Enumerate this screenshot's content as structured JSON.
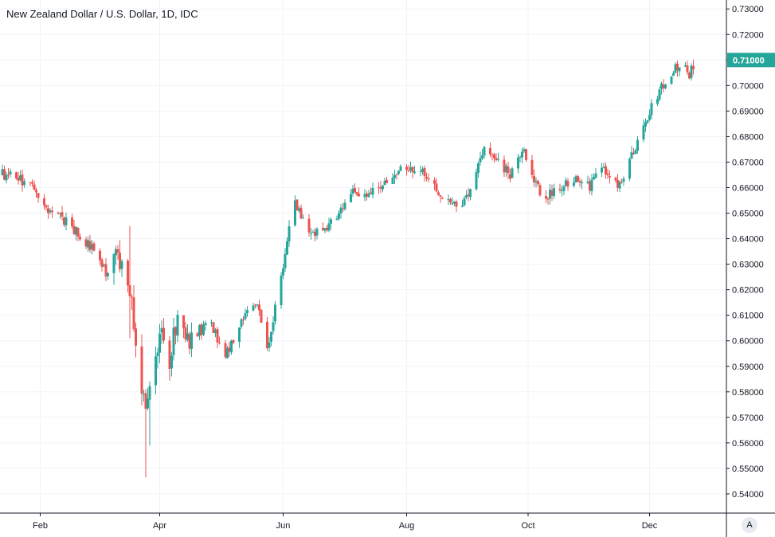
{
  "chart_data": {
    "type": "candlestick",
    "title": "New Zealand Dollar / U.S. Dollar, 1D, IDC",
    "ylim": [
      0.5325,
      0.7335
    ],
    "y_ticks": [
      "0.73000",
      "0.72000",
      "0.71000",
      "0.70000",
      "0.69000",
      "0.68000",
      "0.67000",
      "0.66000",
      "0.65000",
      "0.64000",
      "0.63000",
      "0.62000",
      "0.61000",
      "0.60000",
      "0.59000",
      "0.58000",
      "0.57000",
      "0.56000",
      "0.55000",
      "0.54000"
    ],
    "x_tick_labels": [
      "Feb",
      "Apr",
      "Jun",
      "Aug",
      "Oct",
      "Dec"
    ],
    "x_tick_days": [
      19,
      79,
      141,
      203,
      264,
      325
    ],
    "last_price": "0.71000",
    "colors": {
      "up": "#26a69a",
      "down": "#ef5350",
      "last_price_label": "#26a69a",
      "grid": "#f0f3fa",
      "axis": "#131722"
    },
    "trend_days": [
      0,
      14,
      21,
      33,
      46,
      52,
      57,
      65,
      66,
      67,
      72,
      76,
      80,
      83,
      88,
      96,
      104,
      112,
      121,
      128,
      133,
      141,
      146,
      153,
      161,
      176,
      187,
      201,
      210,
      222,
      230,
      237,
      242,
      255,
      262,
      264,
      272,
      285,
      295,
      300,
      310,
      325,
      332,
      339,
      345,
      349
    ],
    "trend_closes": [
      0.665,
      0.662,
      0.653,
      0.646,
      0.636,
      0.626,
      0.634,
      0.619,
      0.605,
      0.595,
      0.57,
      0.595,
      0.602,
      0.588,
      0.61,
      0.598,
      0.608,
      0.594,
      0.61,
      0.615,
      0.595,
      0.63,
      0.657,
      0.644,
      0.641,
      0.659,
      0.658,
      0.668,
      0.668,
      0.656,
      0.652,
      0.664,
      0.677,
      0.665,
      0.677,
      0.665,
      0.656,
      0.663,
      0.661,
      0.668,
      0.66,
      0.69,
      0.7,
      0.708,
      0.705,
      0.71
    ],
    "series": [
      {
        "values": [
          0.665,
          0.662,
          0.653,
          0.646,
          0.636,
          0.626,
          0.634,
          0.619,
          0.605,
          0.595,
          0.57,
          0.595,
          0.602,
          0.588,
          0.61,
          0.598,
          0.608,
          0.594,
          0.61,
          0.615,
          0.595,
          0.63,
          0.657,
          0.644,
          0.641,
          0.659,
          0.658,
          0.668,
          0.668,
          0.656,
          0.652,
          0.664,
          0.677,
          0.665,
          0.677,
          0.665,
          0.656,
          0.663,
          0.661,
          0.668,
          0.66,
          0.69,
          0.7,
          0.708,
          0.705,
          0.71
        ]
      }
    ],
    "spikes": [
      {
        "day": 64,
        "high": 0.645,
        "low": 0.601
      },
      {
        "day": 72,
        "high": 0.578,
        "low": 0.5465
      },
      {
        "day": 74,
        "high": 0.575,
        "low": 0.559
      }
    ],
    "auto_scale_label": "A"
  }
}
